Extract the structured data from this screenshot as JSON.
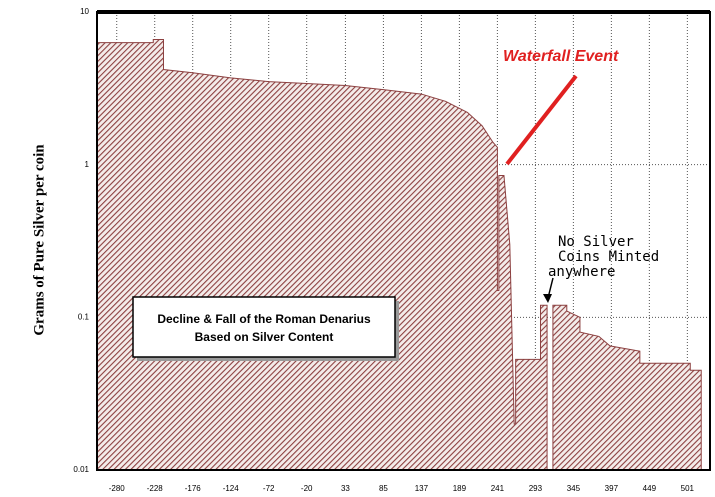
{
  "chart_data": {
    "type": "area",
    "title": "Decline & Fall of the Roman Denarius",
    "subtitle": "Based on Silver Content",
    "ylabel": "Grams of Pure Silver per coin",
    "annotations": [
      "Waterfall Event",
      "No Silver",
      "Coins Minted",
      "anywhere"
    ],
    "x": [
      -307,
      -230,
      -230,
      -216,
      -216,
      -176,
      -124,
      -72,
      -20,
      33,
      85,
      137,
      170,
      200,
      220,
      235,
      241,
      241,
      243,
      243,
      250,
      258,
      264,
      266,
      266,
      300,
      300,
      309,
      312,
      317,
      336,
      336,
      354,
      354,
      380,
      395,
      436,
      436,
      505,
      505,
      520
    ],
    "values": [
      6.3,
      6.3,
      6.6,
      6.6,
      4.2,
      4.0,
      3.7,
      3.5,
      3.4,
      3.3,
      3.1,
      2.9,
      2.6,
      2.2,
      1.8,
      1.4,
      1.3,
      0.15,
      0.15,
      0.85,
      0.85,
      0.3,
      0.02,
      0.02,
      0.053,
      0.053,
      0.12,
      0.12,
      null,
      0.12,
      0.12,
      0.11,
      0.1,
      0.08,
      0.075,
      0.065,
      0.06,
      0.05,
      0.05,
      0.045,
      0.045
    ],
    "color": "#8c4040",
    "xlim": [
      -307,
      532
    ],
    "xticks": [
      -280,
      -228,
      -176,
      -124,
      -72,
      -20,
      33,
      85,
      137,
      189,
      241,
      293,
      345,
      397,
      449,
      501
    ],
    "ylim": [
      0.01,
      10
    ],
    "yticks": [
      0.01,
      0.1,
      1,
      10
    ],
    "ylog": true,
    "grid": true
  }
}
